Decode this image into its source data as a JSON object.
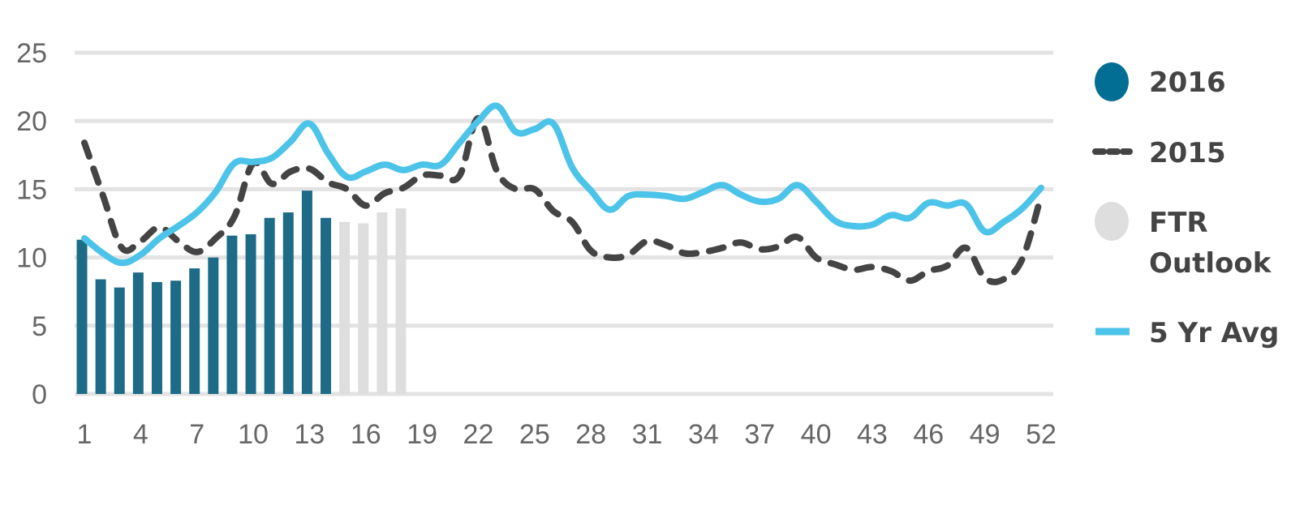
{
  "colors": {
    "bar_2016": "#1e6b87",
    "bar_outlook": "#dedede",
    "line_2015": "#444444",
    "line_5yr": "#4cc3e8",
    "grid": "#e3e3e3",
    "tick_text": "#666666",
    "legend_2016_marker": "#036e93"
  },
  "legend": {
    "items": [
      {
        "label": "2016",
        "marker": "filled-circle",
        "color": "#036e93"
      },
      {
        "label": "2015",
        "marker": "dashed-line",
        "color": "#444444"
      },
      {
        "label": "FTR\nOutlook",
        "marker": "filled-circle",
        "color": "#dedede"
      },
      {
        "label": "5 Yr Avg",
        "marker": "solid-line",
        "color": "#4cc3e8"
      }
    ],
    "placement": "right"
  },
  "chart_data": {
    "type": "bar",
    "title": "",
    "xlabel": "",
    "ylabel": "",
    "ylim": [
      0,
      25
    ],
    "xlim": [
      1,
      52
    ],
    "grid": true,
    "y_ticks": [
      0,
      5,
      10,
      15,
      20,
      25
    ],
    "x_ticks": [
      1,
      4,
      7,
      10,
      13,
      16,
      19,
      22,
      25,
      28,
      31,
      34,
      37,
      40,
      43,
      46,
      49,
      52
    ],
    "series": [
      {
        "name": "2016",
        "type": "bar",
        "color": "#1e6b87",
        "x": [
          1,
          2,
          3,
          4,
          5,
          6,
          7,
          8,
          9,
          10,
          11,
          12,
          13,
          14
        ],
        "values": [
          11.3,
          8.4,
          7.8,
          8.9,
          8.2,
          8.3,
          9.2,
          10.0,
          11.6,
          11.7,
          12.9,
          13.3,
          14.9,
          12.9
        ]
      },
      {
        "name": "FTR Outlook",
        "type": "bar",
        "color": "#dedede",
        "x": [
          15,
          16,
          17,
          18
        ],
        "values": [
          12.6,
          12.5,
          13.3,
          13.6
        ]
      },
      {
        "name": "2015",
        "type": "line",
        "style": "dashed",
        "color": "#444444",
        "x": [
          1,
          2,
          3,
          4,
          5,
          6,
          7,
          8,
          9,
          10,
          11,
          12,
          13,
          14,
          15,
          16,
          17,
          18,
          19,
          20,
          21,
          22,
          23,
          24,
          25,
          26,
          27,
          28,
          29,
          30,
          31,
          32,
          33,
          34,
          35,
          36,
          37,
          38,
          39,
          40,
          41,
          42,
          43,
          44,
          45,
          46,
          47,
          48,
          49,
          50,
          51,
          52
        ],
        "values": [
          18.4,
          14.5,
          10.7,
          11.2,
          12.2,
          11.2,
          10.4,
          11.4,
          13.0,
          16.9,
          15.4,
          16.3,
          16.5,
          15.5,
          15.0,
          13.8,
          14.7,
          15.1,
          16.0,
          16.0,
          16.0,
          20.2,
          16.3,
          15.0,
          15.0,
          13.4,
          12.6,
          10.5,
          10.0,
          10.2,
          11.2,
          10.9,
          10.3,
          10.4,
          10.7,
          11.1,
          10.6,
          10.8,
          11.5,
          10.0,
          9.5,
          9.1,
          9.3,
          9.0,
          8.3,
          9.0,
          9.4,
          10.7,
          8.5,
          8.4,
          9.9,
          14.5
        ]
      },
      {
        "name": "5 Yr Avg",
        "type": "line",
        "style": "solid",
        "color": "#4cc3e8",
        "x": [
          1,
          2,
          3,
          4,
          5,
          6,
          7,
          8,
          9,
          10,
          11,
          12,
          13,
          14,
          15,
          16,
          17,
          18,
          19,
          20,
          21,
          22,
          23,
          24,
          25,
          26,
          27,
          28,
          29,
          30,
          31,
          32,
          33,
          34,
          35,
          36,
          37,
          38,
          39,
          40,
          41,
          42,
          43,
          44,
          45,
          46,
          47,
          48,
          49,
          50,
          51,
          52
        ],
        "values": [
          11.4,
          10.3,
          9.6,
          10.2,
          11.4,
          12.3,
          13.3,
          14.8,
          16.9,
          17.0,
          17.3,
          18.5,
          19.8,
          17.6,
          15.9,
          16.3,
          16.8,
          16.4,
          16.8,
          16.8,
          18.4,
          20.0,
          21.1,
          19.2,
          19.4,
          19.8,
          16.6,
          14.9,
          13.5,
          14.5,
          14.6,
          14.5,
          14.3,
          14.8,
          15.3,
          14.6,
          14.1,
          14.3,
          15.3,
          14.1,
          12.7,
          12.3,
          12.4,
          13.1,
          12.9,
          14.0,
          13.8,
          13.9,
          11.9,
          12.6,
          13.6,
          15.1
        ]
      }
    ]
  }
}
